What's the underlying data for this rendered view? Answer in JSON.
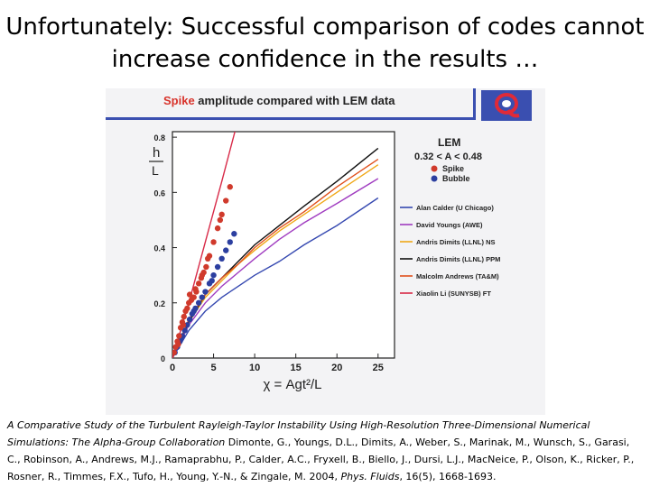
{
  "slide": {
    "title_line1": "Unfortunately: Successful comparison of codes cannot",
    "title_line2": "increase confidence in the results …"
  },
  "figure": {
    "title_prefix": "Spike",
    "title_rest": " amplitude compared with LEM data"
  },
  "chart_data": {
    "type": "line",
    "title": "Spike amplitude compared with LEM data",
    "xlabel": "χ = Agt²/L",
    "ylabel": "h / L",
    "xlim": [
      0,
      27
    ],
    "ylim": [
      0,
      0.82
    ],
    "xticks": [
      "0",
      "5",
      "10",
      "15",
      "20",
      "25"
    ],
    "yticks": [
      "0",
      "0.2",
      "0.4",
      "0.6",
      "0.8"
    ],
    "legend_placement": "right",
    "lem_legend": {
      "title": "LEM",
      "condition": "0.32 < A < 0.48",
      "entries": [
        {
          "name": "Spike",
          "color": "#d03a2c"
        },
        {
          "name": "Bubble",
          "color": "#2c3fa0"
        }
      ]
    },
    "series": [
      {
        "name": "Alan Calder (U Chicago)",
        "color": "#3548b0",
        "x": [
          0,
          1,
          2,
          4,
          6,
          8,
          10,
          13,
          16,
          20,
          25
        ],
        "y": [
          0,
          0.05,
          0.1,
          0.17,
          0.22,
          0.26,
          0.3,
          0.35,
          0.41,
          0.48,
          0.58
        ]
      },
      {
        "name": "David Youngs (AWE)",
        "color": "#a03cc0",
        "x": [
          0,
          1,
          2,
          4,
          6,
          8,
          10,
          13,
          16,
          20,
          25
        ],
        "y": [
          0,
          0.06,
          0.12,
          0.2,
          0.26,
          0.31,
          0.36,
          0.43,
          0.49,
          0.56,
          0.65
        ]
      },
      {
        "name": "Andris Dimits (LLNL) NS",
        "color": "#f0a818",
        "x": [
          0,
          1,
          2,
          4,
          6,
          8,
          10,
          13,
          16,
          20,
          25
        ],
        "y": [
          0,
          0.07,
          0.13,
          0.22,
          0.28,
          0.34,
          0.39,
          0.46,
          0.52,
          0.6,
          0.7
        ]
      },
      {
        "name": "Andris Dimits (LLNL) PPM",
        "color": "#111111",
        "x": [
          0,
          1,
          2,
          4,
          6,
          8,
          10,
          13,
          16,
          20,
          25
        ],
        "y": [
          0,
          0.07,
          0.13,
          0.23,
          0.29,
          0.35,
          0.41,
          0.48,
          0.55,
          0.64,
          0.76
        ]
      },
      {
        "name": "Malcolm Andrews (TA&M)",
        "color": "#e0501c",
        "x": [
          0,
          1,
          2,
          4,
          6,
          8,
          10,
          13,
          16,
          20,
          25
        ],
        "y": [
          0,
          0.07,
          0.14,
          0.23,
          0.29,
          0.34,
          0.4,
          0.47,
          0.53,
          0.62,
          0.72
        ]
      },
      {
        "name": "Xiaolin Li (SUNYSB) FT",
        "color": "#d82a48",
        "x": [
          0,
          2,
          4,
          6,
          7.6
        ],
        "y": [
          0,
          0.2,
          0.42,
          0.64,
          0.82
        ]
      }
    ],
    "lem_spike": {
      "x": [
        0.2,
        0.4,
        0.6,
        0.8,
        1.0,
        1.2,
        1.4,
        1.6,
        1.8,
        2.0,
        2.3,
        2.6,
        2.9,
        3.2,
        3.5,
        3.8,
        4.1,
        4.5,
        5.0,
        5.5,
        6.0,
        6.5,
        7.0,
        0.7,
        1.3,
        2.1,
        2.8,
        3.6,
        4.3,
        5.8
      ],
      "y": [
        0.02,
        0.04,
        0.06,
        0.08,
        0.11,
        0.13,
        0.15,
        0.17,
        0.18,
        0.2,
        0.21,
        0.22,
        0.24,
        0.27,
        0.29,
        0.31,
        0.33,
        0.37,
        0.42,
        0.47,
        0.52,
        0.57,
        0.62,
        0.05,
        0.12,
        0.23,
        0.25,
        0.3,
        0.36,
        0.5
      ]
    },
    "lem_bubble": {
      "x": [
        0.3,
        0.6,
        0.9,
        1.2,
        1.5,
        1.8,
        2.1,
        2.4,
        2.8,
        3.2,
        3.6,
        4.0,
        4.5,
        5.0,
        5.5,
        6.0,
        6.5,
        7.0,
        7.5,
        1.0,
        2.6,
        4.8
      ],
      "y": [
        0.02,
        0.04,
        0.06,
        0.08,
        0.1,
        0.12,
        0.14,
        0.16,
        0.18,
        0.2,
        0.22,
        0.24,
        0.27,
        0.3,
        0.33,
        0.36,
        0.39,
        0.42,
        0.45,
        0.07,
        0.17,
        0.28
      ]
    }
  },
  "citation": {
    "italic1": "A Comparative Study of the Turbulent Rayleigh-Taylor Instability Using High-Resolution Three-Dimensional Numerical Simulations: The Alpha-Group Collaboration",
    "authors": " Dimonte, G., Youngs, D.L., Dimits, A., Weber, S., Marinak, M., Wunsch, S., Garasi, C., Robinson, A., Andrews, M.J., Ramaprabhu, P., Calder, A.C., Fryxell, B., Biello, J., Dursi, L.J., MacNeice, P., Olson, K., Ricker, P., Rosner, R., Timmes, F.X., Tufo, H., Young, Y.-N., & Zingale, M. 2004, ",
    "journal": "Phys. Fluids",
    "volume": ", 16(5), 1668-1693."
  }
}
